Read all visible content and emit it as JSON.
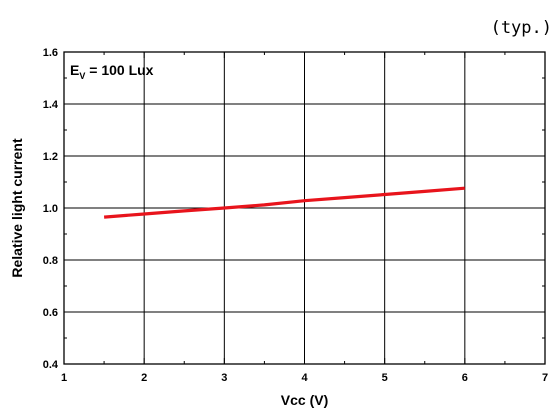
{
  "chart_data": {
    "type": "line",
    "title": "",
    "note": "(typ.)",
    "xlabel": "Vcc (V)",
    "ylabel": "Relative light current",
    "xlim": [
      1,
      7
    ],
    "ylim": [
      0.4,
      1.6
    ],
    "xticks": [
      "1",
      "2",
      "3",
      "4",
      "5",
      "6",
      "7"
    ],
    "yticks": [
      "0.4",
      "0.6",
      "0.8",
      "1.0",
      "1.2",
      "1.4",
      "1.6"
    ],
    "grid": true,
    "annotation": {
      "symbol": "E",
      "subscript": "V",
      "rest": " = 100 Lux"
    },
    "series": [
      {
        "color": "#e8141c",
        "x": [
          1.5,
          2.0,
          2.5,
          3.0,
          3.5,
          4.0,
          4.5,
          5.0,
          5.5,
          6.0
        ],
        "y": [
          0.965,
          0.977,
          0.989,
          1.0,
          1.012,
          1.028,
          1.04,
          1.052,
          1.064,
          1.076
        ]
      }
    ]
  }
}
